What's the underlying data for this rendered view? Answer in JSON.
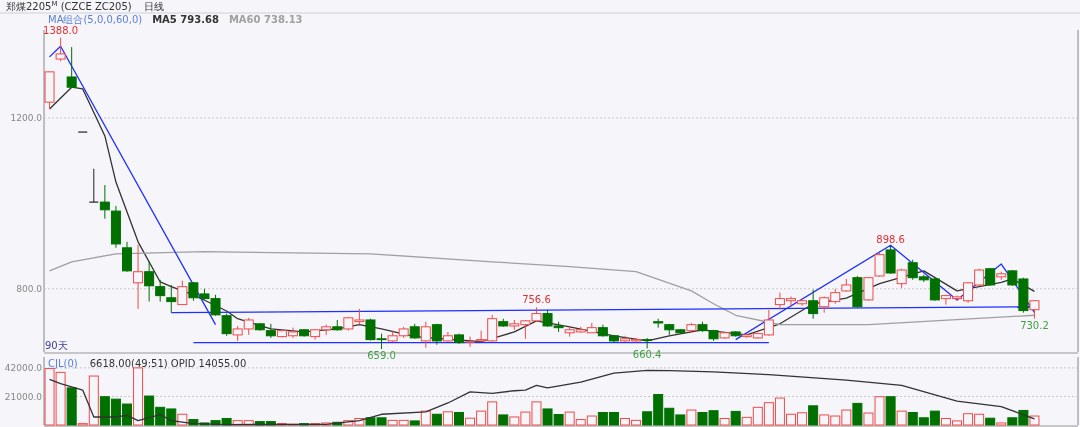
{
  "chart_data": [
    {
      "type": "candlestick",
      "title": "郑煤2205$^{M}$ (CZCE ZC205)",
      "subtitle": "日线",
      "legend_title": "MA组合(5,0,0,60,0)",
      "legend": "top left",
      "grid": "y",
      "categories": [
        null,
        null,
        null,
        null,
        null,
        null,
        null,
        null,
        null,
        null,
        null,
        null,
        null,
        null,
        null,
        null,
        null,
        null,
        null,
        null,
        null,
        null,
        null,
        null,
        null,
        null,
        null,
        null,
        null,
        null,
        null,
        null,
        null,
        null,
        null,
        null,
        null,
        null,
        null,
        null,
        null,
        null,
        null,
        null,
        null,
        null,
        null,
        null,
        null,
        null,
        null,
        null,
        null,
        null,
        null,
        null,
        null,
        null,
        null,
        null,
        null,
        null,
        null,
        null,
        null,
        null,
        null,
        null,
        null,
        null,
        null,
        null,
        null,
        null,
        null,
        null,
        null,
        null,
        null,
        null,
        null,
        null,
        null,
        null,
        null,
        null,
        null,
        null,
        null,
        null
      ],
      "ohlc": [
        [
          1237,
          1308,
          1221,
          1308
        ],
        [
          1338,
          1388,
          1333,
          1350
        ],
        [
          1296,
          1366,
          1270,
          1272
        ],
        [
          1167,
          1167,
          1167,
          1167
        ],
        [
          1003,
          1081,
          1003,
          1003
        ],
        [
          1003,
          1043,
          964,
          985
        ],
        [
          982,
          994,
          896,
          905
        ],
        [
          896,
          910,
          840,
          842
        ],
        [
          814,
          903,
          753,
          840
        ],
        [
          840,
          865,
          770,
          807
        ],
        [
          805,
          821,
          770,
          784
        ],
        [
          779,
          809,
          744,
          770
        ],
        [
          763,
          819,
          763,
          805
        ],
        [
          814,
          816,
          772,
          779
        ],
        [
          788,
          800,
          775,
          777
        ],
        [
          777,
          786,
          737,
          739
        ],
        [
          737,
          742,
          690,
          695
        ],
        [
          692,
          713,
          678,
          706
        ],
        [
          706,
          732,
          692,
          727
        ],
        [
          718,
          720,
          702,
          704
        ],
        [
          702,
          718,
          685,
          690
        ],
        [
          688,
          706,
          686,
          702
        ],
        [
          690,
          709,
          685,
          699
        ],
        [
          704,
          706,
          688,
          690
        ],
        [
          688,
          706,
          681,
          704
        ],
        [
          704,
          716,
          692,
          711
        ],
        [
          711,
          727,
          702,
          704
        ],
        [
          706,
          734,
          702,
          732
        ],
        [
          723,
          753,
          716,
          727
        ],
        [
          727,
          730,
          679,
          681
        ],
        [
          683,
          695,
          659,
          681
        ],
        [
          678,
          702,
          676,
          690
        ],
        [
          690,
          711,
          685,
          706
        ],
        [
          711,
          718,
          683,
          685
        ],
        [
          678,
          723,
          662,
          711
        ],
        [
          716,
          718,
          669,
          678
        ],
        [
          678,
          699,
          676,
          690
        ],
        [
          692,
          695,
          671,
          674
        ],
        [
          675,
          688,
          664,
          676
        ],
        [
          678,
          702,
          676,
          681
        ],
        [
          678,
          739,
          676,
          730
        ],
        [
          723,
          730,
          711,
          713
        ],
        [
          713,
          727,
          704,
          718
        ],
        [
          716,
          727,
          683,
          725
        ],
        [
          725,
          756.6,
          723,
          742
        ],
        [
          742,
          751,
          711,
          713
        ],
        [
          713,
          723,
          699,
          709
        ],
        [
          697,
          711,
          688,
          704
        ],
        [
          699,
          711,
          697,
          704
        ],
        [
          697,
          720,
          697,
          709
        ],
        [
          709,
          716,
          688,
          690
        ],
        [
          690,
          692,
          674,
          678
        ],
        [
          678,
          690,
          676,
          683
        ],
        [
          678,
          685,
          674,
          681
        ],
        [
          681,
          685,
          660.4,
          679
        ],
        [
          723,
          730,
          709,
          720
        ],
        [
          716,
          718,
          692,
          704
        ],
        [
          704,
          706,
          695,
          697
        ],
        [
          702,
          720,
          697,
          716
        ],
        [
          716,
          723,
          699,
          702
        ],
        [
          702,
          704,
          678,
          683
        ],
        [
          685,
          699,
          683,
          697
        ],
        [
          699,
          701,
          688,
          690
        ],
        [
          688,
          695,
          685,
          692
        ],
        [
          685,
          697,
          683,
          695
        ],
        [
          692,
          751,
          690,
          727
        ],
        [
          763,
          791,
          751,
          777
        ],
        [
          772,
          782,
          758,
          777
        ],
        [
          765,
          777,
          760,
          772
        ],
        [
          772,
          798,
          730,
          742
        ],
        [
          758,
          782,
          744,
          779
        ],
        [
          770,
          800,
          765,
          791
        ],
        [
          795,
          823,
          793,
          809
        ],
        [
          826,
          830,
          756,
          758
        ],
        [
          774,
          828,
          772,
          826
        ],
        [
          830,
          884,
          828,
          880
        ],
        [
          891,
          898.6,
          835,
          837
        ],
        [
          812,
          847,
          802,
          844
        ],
        [
          861,
          868,
          821,
          826
        ],
        [
          828,
          833,
          816,
          821
        ],
        [
          823,
          826,
          772,
          774
        ],
        [
          777,
          786,
          763,
          784
        ],
        [
          777,
          784,
          772,
          781
        ],
        [
          772,
          816,
          767,
          814
        ],
        [
          809,
          847,
          807,
          844
        ],
        [
          847,
          849,
          807,
          809
        ],
        [
          828,
          840,
          821,
          835
        ],
        [
          842,
          844,
          807,
          809
        ],
        [
          823,
          826,
          744,
          749
        ],
        [
          751,
          774,
          730.2,
          772
        ]
      ],
      "series": [
        {
          "type": "line",
          "name": "MA5 793.68",
          "color": "#333333",
          "values": [
            1221,
            null,
            1272,
            1268,
            null,
            1158,
            1050,
            null,
            910,
            null,
            816,
            805,
            null,
            786,
            null,
            null,
            748,
            730,
            null,
            null,
            706,
            null,
            null,
            699,
            null,
            null,
            706,
            null,
            716,
            null,
            706,
            null,
            null,
            688,
            null,
            null,
            null,
            null,
            null,
            676,
            null,
            null,
            699,
            null,
            725,
            null,
            null,
            711,
            null,
            null,
            null,
            690,
            null,
            null,
            678,
            null,
            690,
            null,
            null,
            704,
            null,
            null,
            695,
            692,
            null,
            null,
            718,
            null,
            null,
            765,
            null,
            null,
            778,
            null,
            null,
            812,
            null,
            null,
            null,
            842,
            null,
            null,
            795,
            null,
            null,
            null,
            815,
            823,
            null,
            794
          ]
        },
        {
          "type": "line",
          "name": "MA60 738.13",
          "color": "#a0a0a0",
          "values": [
            842,
            null,
            863,
            null,
            null,
            null,
            882,
            null,
            null,
            null,
            null,
            null,
            null,
            null,
            887,
            null,
            null,
            null,
            null,
            null,
            null,
            null,
            null,
            null,
            null,
            null,
            null,
            null,
            null,
            882,
            null,
            null,
            null,
            null,
            null,
            null,
            null,
            null,
            null,
            null,
            863,
            null,
            null,
            null,
            null,
            null,
            null,
            852,
            null,
            null,
            null,
            null,
            null,
            840,
            null,
            null,
            null,
            null,
            795,
            null,
            765,
            null,
            738,
            null,
            null,
            null,
            716,
            null,
            null,
            null,
            null,
            null,
            null,
            null,
            716,
            null,
            null,
            null,
            null,
            null,
            null,
            null,
            null,
            null,
            null,
            null,
            null,
            null,
            null,
            738
          ]
        },
        {
          "type": "line",
          "color": "#1f2fff",
          "values": [
            1343,
            1368,
            null,
            null,
            null,
            null,
            null,
            null,
            null,
            null,
            null,
            null,
            null,
            null,
            null,
            716,
            null,
            null,
            null,
            null,
            null,
            null,
            null,
            null,
            null,
            null,
            null,
            null,
            null,
            null,
            null,
            null,
            null,
            null,
            null,
            null,
            null,
            null,
            null,
            null,
            null,
            null,
            null,
            null,
            null,
            null,
            null,
            null,
            null,
            null,
            null,
            null,
            null,
            null,
            null,
            null,
            null,
            null,
            null,
            null,
            null,
            null,
            null,
            null,
            null,
            null,
            null,
            null,
            null,
            null,
            null,
            null,
            null,
            null,
            null,
            null,
            null,
            null,
            null,
            null,
            null,
            null,
            null,
            null,
            null,
            null,
            null,
            null,
            null,
            null
          ]
        },
        {
          "type": "line",
          "color": "#1f2fff",
          "values": [
            null,
            null,
            null,
            null,
            null,
            null,
            null,
            null,
            null,
            null,
            null,
            744,
            null,
            null,
            null,
            null,
            null,
            null,
            null,
            null,
            null,
            null,
            null,
            null,
            null,
            null,
            null,
            null,
            null,
            null,
            null,
            null,
            null,
            null,
            null,
            null,
            null,
            null,
            null,
            null,
            null,
            null,
            null,
            null,
            null,
            null,
            null,
            null,
            null,
            null,
            null,
            null,
            null,
            null,
            null,
            null,
            null,
            null,
            null,
            null,
            null,
            null,
            null,
            null,
            null,
            null,
            null,
            null,
            null,
            null,
            null,
            null,
            null,
            null,
            null,
            null,
            null,
            null,
            null,
            null,
            null,
            null,
            null,
            null,
            null,
            null,
            null,
            null,
            null,
            758
          ]
        },
        {
          "type": "line",
          "color": "#1f2fff",
          "values": [
            null,
            null,
            null,
            null,
            null,
            null,
            null,
            null,
            null,
            null,
            null,
            null,
            null,
            674,
            null,
            null,
            null,
            null,
            null,
            null,
            null,
            null,
            null,
            null,
            null,
            null,
            null,
            null,
            null,
            null,
            null,
            null,
            null,
            null,
            null,
            null,
            null,
            null,
            null,
            null,
            null,
            null,
            null,
            null,
            null,
            null,
            null,
            null,
            null,
            null,
            null,
            null,
            null,
            null,
            null,
            null,
            null,
            null,
            null,
            null,
            null,
            null,
            null,
            null,
            null,
            674,
            null,
            null,
            null,
            null,
            null,
            null,
            null,
            null,
            null,
            null,
            null,
            null,
            null,
            null,
            null,
            null,
            null,
            null,
            null,
            null,
            null,
            null,
            null,
            null
          ]
        },
        {
          "type": "line",
          "color": "#1f2fff",
          "values": [
            null,
            null,
            null,
            null,
            null,
            null,
            null,
            null,
            null,
            null,
            null,
            null,
            null,
            null,
            null,
            null,
            null,
            null,
            null,
            null,
            null,
            null,
            null,
            null,
            null,
            null,
            null,
            null,
            null,
            null,
            null,
            null,
            null,
            null,
            null,
            null,
            null,
            null,
            null,
            null,
            null,
            null,
            null,
            null,
            null,
            null,
            null,
            null,
            null,
            null,
            null,
            null,
            null,
            null,
            null,
            null,
            null,
            null,
            null,
            null,
            null,
            null,
            681,
            null,
            null,
            null,
            null,
            null,
            null,
            null,
            null,
            null,
            null,
            null,
            null,
            null,
            902,
            null,
            null,
            null,
            null,
            null,
            774,
            null,
            null,
            null,
            858,
            null,
            null,
            745
          ]
        }
      ],
      "ylim": [
        652,
        1406
      ],
      "yticks": [
        {
          "value": 800,
          "label": "800.0"
        },
        {
          "value": 1200,
          "label": "1200.0"
        }
      ],
      "annotations": [
        {
          "text": "1388.0",
          "y": 1388
        },
        {
          "text": "756.6",
          "y": 756.6
        },
        {
          "text": "898.6",
          "y": 898.6
        },
        {
          "text": "659.0",
          "y": 659
        },
        {
          "text": "660.4",
          "y": 660.4
        },
        {
          "text": "730.2",
          "y": 730.2
        },
        "90天"
      ]
    },
    {
      "type": "bar",
      "title": "CJL(0)",
      "subtitle": "6618.00(49:51)   OPID 14055.00",
      "grid": "y",
      "categories": [
        null,
        null,
        null,
        null,
        null,
        null,
        null,
        null,
        null,
        null,
        null,
        null,
        null,
        null,
        null,
        null,
        null,
        null,
        null,
        null,
        null,
        null,
        null,
        null,
        null,
        null,
        null,
        null,
        null,
        null,
        null,
        null,
        null,
        null,
        null,
        null,
        null,
        null,
        null,
        null,
        null,
        null,
        null,
        null,
        null,
        null,
        null,
        null,
        null,
        null,
        null,
        null,
        null,
        null,
        null,
        null,
        null,
        null,
        null,
        null,
        null,
        null,
        null,
        null,
        null,
        null,
        null,
        null,
        null,
        null,
        null,
        null,
        null,
        null,
        null,
        null,
        null,
        null,
        null,
        null,
        null,
        null,
        null,
        null,
        null,
        null,
        null,
        null,
        null,
        null
      ],
      "series": [
        {
          "type": "bar",
          "values": [
            41500,
            38700,
            27300,
            1000,
            36000,
            20800,
            19000,
            15400,
            42000,
            21300,
            13000,
            11800,
            7900,
            4000,
            1500,
            3200,
            4800,
            3200,
            3200,
            2500,
            2500,
            1000,
            500,
            1000,
            1000,
            1500,
            2000,
            3200,
            4800,
            5300,
            5300,
            3400,
            3400,
            3000,
            10200,
            7900,
            9700,
            9200,
            5000,
            10200,
            17000,
            7400,
            5900,
            9500,
            17000,
            11800,
            7700,
            9500,
            4000,
            6600,
            9200,
            9200,
            4800,
            3400,
            9700,
            22400,
            12300,
            7400,
            11000,
            9200,
            10500,
            4800,
            10000,
            5600,
            13000,
            16400,
            19800,
            7900,
            9000,
            14100,
            7400,
            6600,
            11000,
            15900,
            8800,
            20800,
            20800,
            10200,
            9200,
            5300,
            10200,
            4800,
            3000,
            8300,
            7900,
            5000,
            1500,
            5300,
            10700,
            6600
          ],
          "colors": [
            "#f04a4a",
            "#f04a4a",
            "#007000",
            "#f04a4a",
            "#f04a4a",
            "#007000",
            "#007000",
            "#007000",
            "#f04a4a",
            "#007000",
            "#007000",
            "#007000",
            "#f04a4a",
            "#007000",
            "#007000",
            "#007000",
            "#007000",
            "#f04a4a",
            "#f04a4a",
            "#007000",
            "#007000",
            "#f04a4a",
            "#f04a4a",
            "#007000",
            "#f04a4a",
            "#f04a4a",
            "#007000",
            "#f04a4a",
            "#f04a4a",
            "#007000",
            "#007000",
            "#f04a4a",
            "#f04a4a",
            "#007000",
            "#f04a4a",
            "#007000",
            "#f04a4a",
            "#007000",
            "#f04a4a",
            "#f04a4a",
            "#f04a4a",
            "#007000",
            "#f04a4a",
            "#f04a4a",
            "#f04a4a",
            "#007000",
            "#007000",
            "#f04a4a",
            "#f04a4a",
            "#f04a4a",
            "#007000",
            "#007000",
            "#f04a4a",
            "#f04a4a",
            "#007000",
            "#007000",
            "#007000",
            "#007000",
            "#f04a4a",
            "#007000",
            "#007000",
            "#f04a4a",
            "#007000",
            "#f04a4a",
            "#f04a4a",
            "#f04a4a",
            "#f04a4a",
            "#f04a4a",
            "#f04a4a",
            "#007000",
            "#f04a4a",
            "#f04a4a",
            "#f04a4a",
            "#007000",
            "#f04a4a",
            "#f04a4a",
            "#007000",
            "#f04a4a",
            "#007000",
            "#007000",
            "#007000",
            "#f04a4a",
            "#f04a4a",
            "#f04a4a",
            "#f04a4a",
            "#007000",
            "#f04a4a",
            "#007000",
            "#007000",
            "#f04a4a"
          ]
        },
        {
          "type": "line",
          "color": "#333333",
          "values": [
            33500,
            30400,
            null,
            25700,
            5900,
            null,
            5900,
            7100,
            3200,
            null,
            7700,
            3200,
            null,
            1000,
            null,
            null,
            300,
            null,
            null,
            null,
            null,
            null,
            null,
            null,
            null,
            500,
            null,
            null,
            3200,
            null,
            7900,
            null,
            null,
            null,
            9700,
            null,
            16200,
            null,
            24400,
            null,
            23300,
            null,
            25200,
            25700,
            29100,
            27300,
            null,
            null,
            31600,
            null,
            null,
            38200,
            null,
            null,
            40200,
            null,
            40000,
            null,
            null,
            null,
            39000,
            null,
            null,
            null,
            null,
            37000,
            null,
            null,
            null,
            null,
            null,
            null,
            33000,
            null,
            null,
            null,
            null,
            29200,
            null,
            null,
            null,
            null,
            17500,
            null,
            null,
            null,
            13500,
            null,
            null,
            4500
          ]
        }
      ],
      "ylim": [
        0,
        50000
      ],
      "yticks": [
        {
          "value": 21000,
          "label": "21000.0"
        },
        {
          "value": 42000,
          "label": "42000.0"
        }
      ]
    }
  ]
}
